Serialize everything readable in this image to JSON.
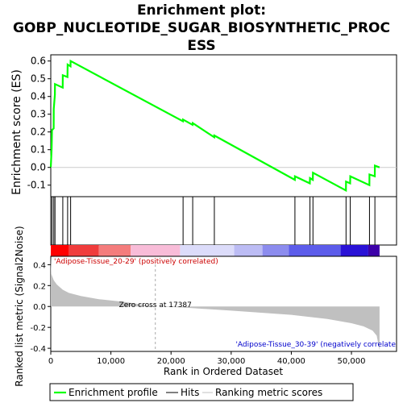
{
  "chart_data": {
    "type": "line",
    "title_lines": [
      "Enrichment plot:",
      "GOBP_NUCLEOTIDE_SUGAR_BIOSYNTHETIC_PROC",
      "ESS"
    ],
    "ylabel_top": "Enrichment score (ES)",
    "ylabel_bottom": "Ranked list metric (Signal2Noise)",
    "xlabel": "Rank in Ordered Dataset",
    "x_ticks": [
      {
        "v": 0,
        "label": "0"
      },
      {
        "v": 10000,
        "label": "10,000"
      },
      {
        "v": 20000,
        "label": "20,000"
      },
      {
        "v": 30000,
        "label": "30,000"
      },
      {
        "v": 40000,
        "label": "40,000"
      },
      {
        "v": 50000,
        "label": "50,000"
      }
    ],
    "es_ticks": [
      {
        "v": 0.6,
        "label": "0.6"
      },
      {
        "v": 0.5,
        "label": "0.5"
      },
      {
        "v": 0.4,
        "label": "0.4"
      },
      {
        "v": 0.3,
        "label": "0.3"
      },
      {
        "v": 0.2,
        "label": "0.2"
      },
      {
        "v": 0.1,
        "label": "0.1"
      },
      {
        "v": 0.0,
        "label": "0.0"
      },
      {
        "v": -0.1,
        "label": "-0.1"
      }
    ],
    "metric_ticks": [
      {
        "v": 0.4,
        "label": "0.4"
      },
      {
        "v": 0.2,
        "label": "0.2"
      },
      {
        "v": 0.0,
        "label": "0.0"
      },
      {
        "v": -0.2,
        "label": "-0.2"
      },
      {
        "v": -0.4,
        "label": "-0.4"
      }
    ],
    "xlim": [
      0,
      57500
    ],
    "es_ylim": [
      -0.165,
      0.635
    ],
    "metric_ylim": [
      -0.43,
      0.48
    ],
    "n_genes": 54675,
    "hits": [
      200,
      500,
      700,
      2000,
      2800,
      3300,
      22000,
      23600,
      27200,
      40600,
      43100,
      43600,
      49100,
      49800,
      53000,
      53900
    ],
    "enrichment_profile": [
      [
        0,
        0.0
      ],
      [
        150,
        0.11
      ],
      [
        200,
        0.21
      ],
      [
        480,
        0.22
      ],
      [
        500,
        0.33
      ],
      [
        680,
        0.41
      ],
      [
        700,
        0.47
      ],
      [
        1980,
        0.45
      ],
      [
        2000,
        0.52
      ],
      [
        2780,
        0.51
      ],
      [
        2800,
        0.58
      ],
      [
        3280,
        0.57
      ],
      [
        3300,
        0.6
      ],
      [
        21980,
        0.26
      ],
      [
        22000,
        0.27
      ],
      [
        23580,
        0.24
      ],
      [
        23600,
        0.25
      ],
      [
        27180,
        0.17
      ],
      [
        27200,
        0.18
      ],
      [
        40580,
        -0.07
      ],
      [
        40600,
        -0.05
      ],
      [
        43080,
        -0.09
      ],
      [
        43100,
        -0.06
      ],
      [
        43580,
        -0.07
      ],
      [
        43600,
        -0.03
      ],
      [
        49080,
        -0.13
      ],
      [
        49100,
        -0.08
      ],
      [
        49780,
        -0.09
      ],
      [
        49800,
        -0.05
      ],
      [
        52980,
        -0.1
      ],
      [
        53000,
        -0.04
      ],
      [
        53880,
        -0.05
      ],
      [
        53900,
        0.01
      ],
      [
        54675,
        0.0
      ]
    ],
    "ranked_metric": [
      [
        0,
        0.48
      ],
      [
        100,
        0.31
      ],
      [
        500,
        0.25
      ],
      [
        1000,
        0.21
      ],
      [
        2000,
        0.16
      ],
      [
        3000,
        0.13
      ],
      [
        5000,
        0.1
      ],
      [
        8000,
        0.07
      ],
      [
        12000,
        0.045
      ],
      [
        17387,
        0.0
      ],
      [
        22000,
        -0.01
      ],
      [
        30000,
        -0.04
      ],
      [
        40000,
        -0.08
      ],
      [
        46000,
        -0.12
      ],
      [
        50000,
        -0.16
      ],
      [
        52000,
        -0.19
      ],
      [
        53500,
        -0.23
      ],
      [
        54200,
        -0.28
      ],
      [
        54675,
        -0.42
      ]
    ],
    "color_bar": [
      {
        "from": 0,
        "to": 3000,
        "color": "#ff0000"
      },
      {
        "from": 3000,
        "to": 8000,
        "color": "#f03c3c"
      },
      {
        "from": 8000,
        "to": 13300,
        "color": "#f47c7c"
      },
      {
        "from": 13300,
        "to": 21500,
        "color": "#f8bcd8"
      },
      {
        "from": 21500,
        "to": 30500,
        "color": "#dcdcfa"
      },
      {
        "from": 30500,
        "to": 35200,
        "color": "#bcbcf4"
      },
      {
        "from": 35200,
        "to": 39600,
        "color": "#8c8cee"
      },
      {
        "from": 39600,
        "to": 48200,
        "color": "#5c5cea"
      },
      {
        "from": 48200,
        "to": 52800,
        "color": "#2a12d6"
      },
      {
        "from": 52800,
        "to": 54675,
        "color": "#3c00a8"
      }
    ],
    "zero_cross_value": 17387,
    "zero_cross_label": "Zero cross at 17387",
    "positive_label": "'Adipose-Tissue_20-29' (positively correlated)",
    "negative_label": "'Adipose-Tissue_30-39' (negatively correlate",
    "legend": [
      {
        "label": "Enrichment profile",
        "color": "#00ff00"
      },
      {
        "label": "Hits",
        "color": "#000000"
      },
      {
        "label": "Ranking metric scores",
        "color": "#c0c0c0"
      }
    ],
    "colors": {
      "profile": "#00ff00",
      "metric_fill": "#c0c0c0",
      "pos_label": "#cc0000",
      "neg_label": "#0000cc"
    }
  }
}
